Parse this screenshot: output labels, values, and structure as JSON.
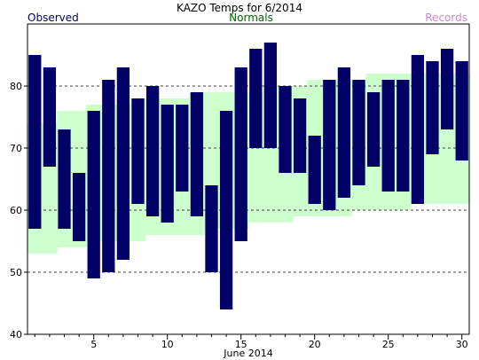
{
  "chart_data": {
    "type": "bar",
    "title": "KAZO Temps for 6/2014",
    "xlabel": "June 2014",
    "legend": {
      "observed": "Observed",
      "normals": "Normals",
      "records": "Records"
    },
    "colors": {
      "observed": "#000066",
      "normals_fill": "#ccffcc",
      "normals_label": "#006600",
      "records_label": "#cc88cc",
      "grid": "#444444",
      "axis": "#000000"
    },
    "ylim": [
      40,
      90
    ],
    "yticks": [
      40,
      50,
      60,
      70,
      80
    ],
    "xlim": [
      0.5,
      30.5
    ],
    "xticks_labeled": [
      5,
      10,
      15,
      20,
      25,
      30
    ],
    "grid": "horizontal dashed",
    "days": [
      1,
      2,
      3,
      4,
      5,
      6,
      7,
      8,
      9,
      10,
      11,
      12,
      13,
      14,
      15,
      16,
      17,
      18,
      19,
      20,
      21,
      22,
      23,
      24,
      25,
      26,
      27,
      28,
      29,
      30
    ],
    "observed_high": [
      85,
      83,
      73,
      66,
      76,
      81,
      83,
      78,
      80,
      77,
      77,
      79,
      64,
      76,
      83,
      86,
      87,
      80,
      78,
      72,
      81,
      83,
      81,
      79,
      81,
      81,
      85,
      84,
      86,
      84
    ],
    "observed_low": [
      57,
      67,
      57,
      55,
      49,
      50,
      52,
      61,
      59,
      58,
      63,
      59,
      50,
      44,
      55,
      70,
      70,
      66,
      66,
      61,
      60,
      62,
      64,
      67,
      63,
      63,
      61,
      69,
      73,
      68
    ],
    "normal_high": [
      74,
      74,
      76,
      76,
      77,
      77,
      77,
      78,
      78,
      78,
      78,
      79,
      79,
      79,
      79,
      79,
      80,
      80,
      80,
      81,
      81,
      81,
      81,
      82,
      82,
      82,
      82,
      82,
      82,
      82
    ],
    "normal_low": [
      53,
      53,
      54,
      54,
      55,
      55,
      55,
      55,
      56,
      56,
      56,
      56,
      57,
      57,
      57,
      58,
      58,
      58,
      59,
      59,
      59,
      59,
      60,
      60,
      60,
      60,
      61,
      61,
      61,
      61
    ]
  }
}
